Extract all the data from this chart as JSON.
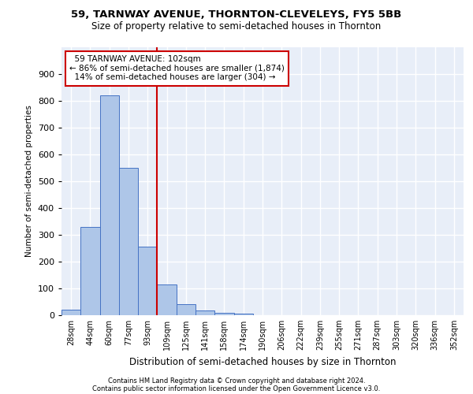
{
  "title1": "59, TARNWAY AVENUE, THORNTON-CLEVELEYS, FY5 5BB",
  "title2": "Size of property relative to semi-detached houses in Thornton",
  "xlabel": "Distribution of semi-detached houses by size in Thornton",
  "ylabel": "Number of semi-detached properties",
  "categories": [
    "28sqm",
    "44sqm",
    "60sqm",
    "77sqm",
    "93sqm",
    "109sqm",
    "125sqm",
    "141sqm",
    "158sqm",
    "174sqm",
    "190sqm",
    "206sqm",
    "222sqm",
    "239sqm",
    "255sqm",
    "271sqm",
    "287sqm",
    "303sqm",
    "320sqm",
    "336sqm",
    "352sqm"
  ],
  "values": [
    20,
    330,
    820,
    550,
    255,
    115,
    42,
    18,
    10,
    6,
    0,
    0,
    0,
    0,
    0,
    0,
    0,
    0,
    0,
    0,
    0
  ],
  "bar_color": "#aec6e8",
  "bar_edge_color": "#4472c4",
  "property_label": "59 TARNWAY AVENUE: 102sqm",
  "pct_smaller": 86,
  "n_smaller": 1874,
  "pct_larger": 14,
  "n_larger": 304,
  "vline_x": 4.5,
  "annotation_box_color": "#ffffff",
  "annotation_border_color": "#cc0000",
  "vline_color": "#cc0000",
  "bg_color": "#e8eef8",
  "grid_color": "#ffffff",
  "footer1": "Contains HM Land Registry data © Crown copyright and database right 2024.",
  "footer2": "Contains public sector information licensed under the Open Government Licence v3.0.",
  "ylim": [
    0,
    1000
  ],
  "yticks": [
    0,
    100,
    200,
    300,
    400,
    500,
    600,
    700,
    800,
    900,
    1000
  ]
}
